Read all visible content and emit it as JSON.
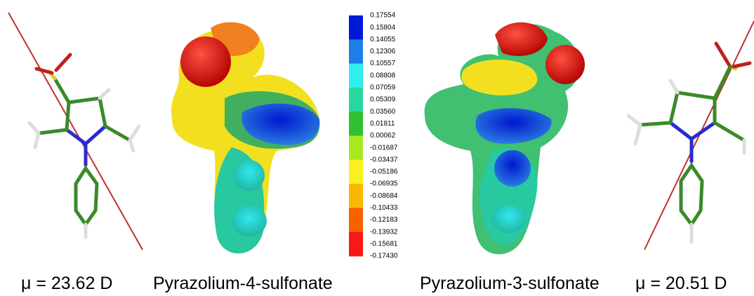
{
  "captions": {
    "left_dipole": "μ = 23.62 D",
    "left_name": "Pyrazolium-4-sulfonate",
    "right_name": "Pyrazolium-3-sulfonate",
    "right_dipole": "μ = 20.51 D"
  },
  "color_scale": {
    "labels": [
      "0.17554",
      "0.15804",
      "0.14055",
      "0.12306",
      "0.10557",
      "0.08808",
      "0.07059",
      "0.05309",
      "0.03560",
      "0.01811",
      "0.00062",
      "-0.01687",
      "-0.03437",
      "-0.05186",
      "-0.06935",
      "-0.08684",
      "-0.10433",
      "-0.12183",
      "-0.13932",
      "-0.15681",
      "-0.17430"
    ]
  }
}
